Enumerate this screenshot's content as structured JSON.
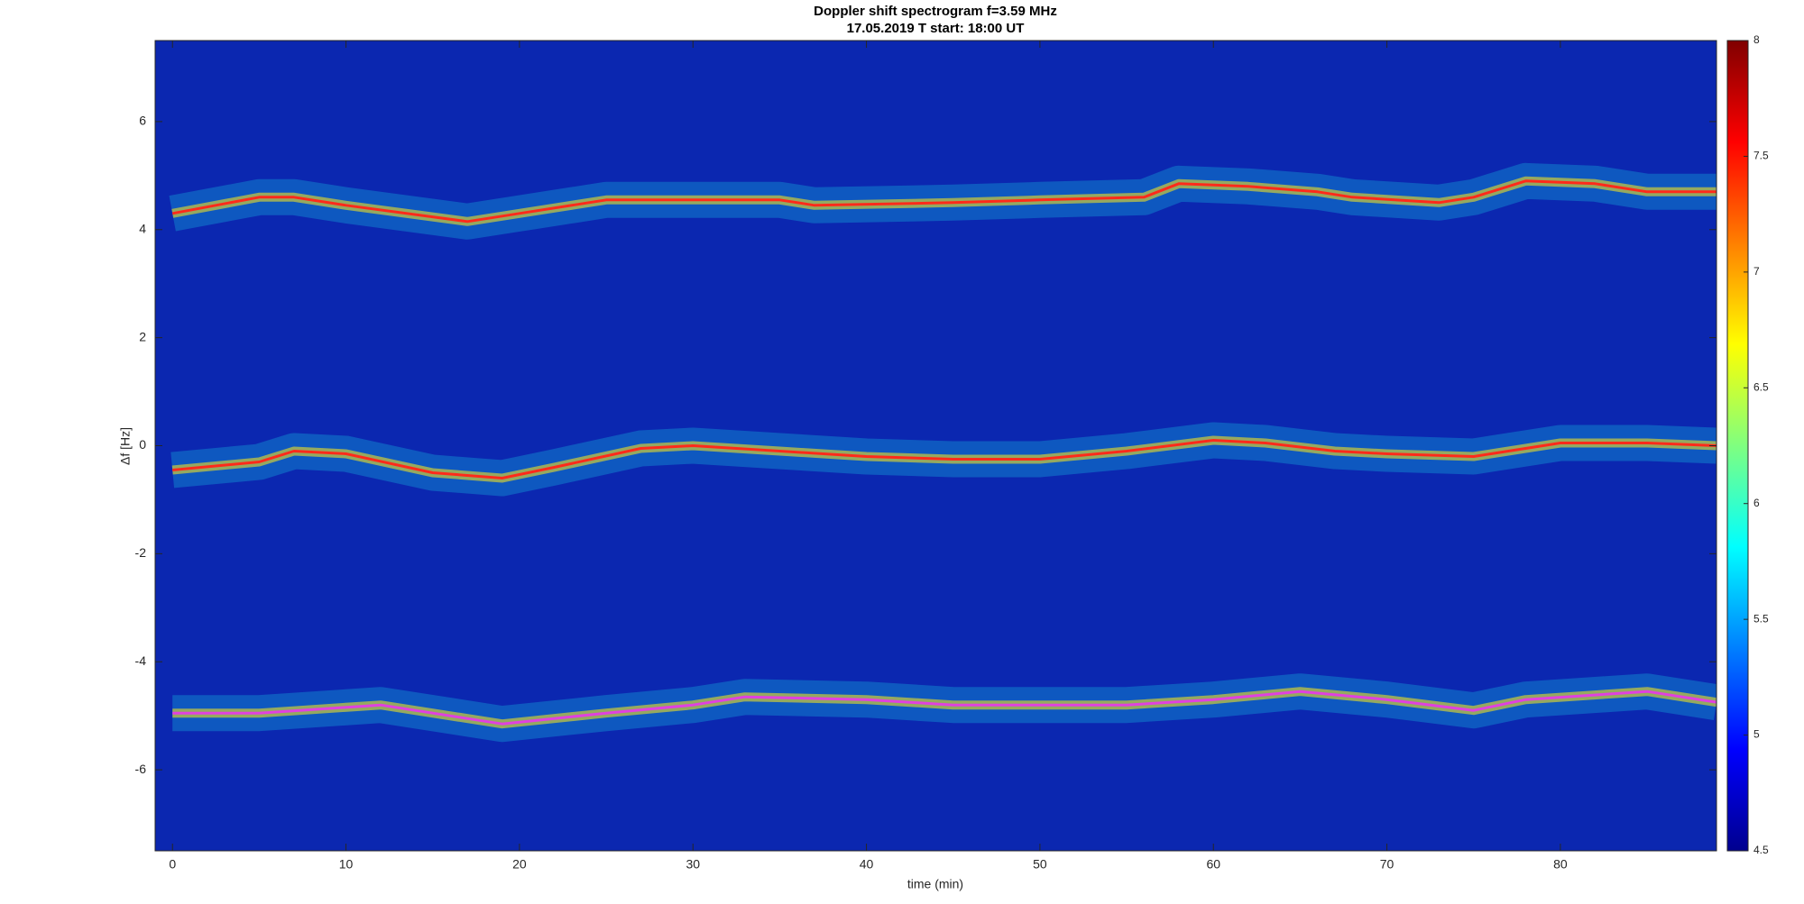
{
  "chart_data": {
    "type": "spectrogram",
    "title": "Doppler shift spectrogram f=3.59 MHz",
    "subtitle": "17.05.2019   T start: 18:00 UT",
    "xlabel": "time (min)",
    "ylabel": "Δf [Hz]",
    "xlim": [
      -1,
      89
    ],
    "xticks": [
      0,
      10,
      20,
      30,
      40,
      50,
      60,
      70,
      80
    ],
    "ylim": [
      -7.5,
      7.5
    ],
    "yticks": [
      -6,
      -4,
      -2,
      0,
      2,
      4,
      6
    ],
    "colormap": "jet",
    "clim": [
      4.5,
      8
    ],
    "cticks": [
      4.5,
      5,
      5.5,
      6,
      6.5,
      7,
      7.5,
      8
    ],
    "series": [
      {
        "color": "#ff2a1a",
        "x": [
          0,
          5,
          7,
          10,
          17,
          20,
          25,
          30,
          35,
          37,
          45,
          50,
          56,
          58,
          62,
          66,
          68,
          73,
          75,
          78,
          82,
          85,
          89
        ],
        "values": [
          4.3,
          4.6,
          4.6,
          4.45,
          4.15,
          4.3,
          4.55,
          4.55,
          4.55,
          4.45,
          4.5,
          4.55,
          4.6,
          4.85,
          4.8,
          4.7,
          4.6,
          4.5,
          4.6,
          4.9,
          4.85,
          4.7,
          4.7
        ]
      },
      {
        "color": "#ff2a1a",
        "x": [
          0,
          5,
          7,
          10,
          15,
          19,
          22,
          27,
          30,
          35,
          40,
          45,
          50,
          55,
          60,
          63,
          67,
          70,
          75,
          80,
          85,
          89
        ],
        "values": [
          -0.45,
          -0.3,
          -0.1,
          -0.15,
          -0.5,
          -0.6,
          -0.4,
          -0.05,
          0.0,
          -0.1,
          -0.2,
          -0.25,
          -0.25,
          -0.1,
          0.1,
          0.05,
          -0.1,
          -0.15,
          -0.2,
          0.05,
          0.05,
          0.0
        ]
      },
      {
        "color": "#e040e0",
        "x": [
          0,
          5,
          12,
          19,
          25,
          30,
          33,
          40,
          45,
          55,
          60,
          65,
          70,
          75,
          78,
          85,
          89
        ],
        "values": [
          -4.95,
          -4.95,
          -4.8,
          -5.15,
          -4.95,
          -4.8,
          -4.65,
          -4.7,
          -4.8,
          -4.8,
          -4.7,
          -4.55,
          -4.7,
          -4.9,
          -4.7,
          -4.55,
          -4.75
        ]
      }
    ]
  }
}
